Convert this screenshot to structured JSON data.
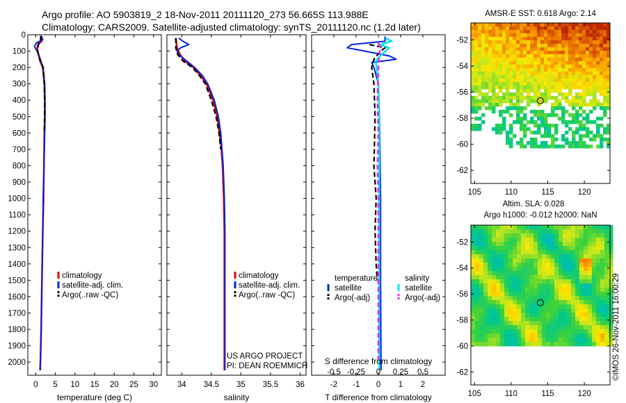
{
  "header": {
    "line1": "Argo profile: AO 5903819_2 18-Nov-2011 20111120_273 56.665S 113.988E",
    "line2": "Climatology: CARS2009. Satellite-adjusted climatology: synTS_20111120.nc (1.2d later)"
  },
  "colors": {
    "climatology": "#e00000",
    "satellite_clim": "#0022dd",
    "argo": "#000000",
    "satellite_diff": "#00e5e5",
    "argo_salinity_diff": "#ee22ee"
  },
  "chart_data": [
    {
      "type": "line",
      "name": "temperature-panel",
      "xlabel": "temperature (deg C)",
      "ylabel": "",
      "xlim": [
        -2,
        32
      ],
      "ylim": [
        2080,
        0
      ],
      "xticks": [
        0,
        5,
        10,
        15,
        20,
        25,
        30
      ],
      "yticks": [
        0,
        100,
        200,
        300,
        400,
        500,
        600,
        700,
        800,
        900,
        1000,
        1100,
        1200,
        1300,
        1400,
        1500,
        1600,
        1700,
        1800,
        1900,
        2000
      ],
      "legend": [
        "climatology",
        "satellite-adj. clim.",
        "Argo(..raw -QC)"
      ],
      "series": [
        {
          "name": "climatology",
          "depth": [
            10,
            40,
            60,
            80,
            100,
            130,
            160,
            200,
            300,
            400,
            500,
            600,
            800,
            1000,
            1200,
            1500,
            1800,
            2000,
            2050
          ],
          "values": [
            1.2,
            1.5,
            0.6,
            0.4,
            0.5,
            0.8,
            1.1,
            1.8,
            2.2,
            2.3,
            2.3,
            2.2,
            2.1,
            2.0,
            1.8,
            1.6,
            1.4,
            1.2,
            1.1
          ]
        },
        {
          "name": "satellite-adj. clim.",
          "depth": [
            10,
            30,
            50,
            70,
            90,
            110,
            130,
            160,
            200,
            300,
            400,
            500,
            600,
            800,
            1000,
            1200,
            1500,
            1800,
            2000,
            2050
          ],
          "values": [
            1.5,
            1.8,
            0.2,
            -0.3,
            0.1,
            0.6,
            0.9,
            1.3,
            1.9,
            2.3,
            2.4,
            2.4,
            2.3,
            2.1,
            1.9,
            1.8,
            1.6,
            1.4,
            1.2,
            1.2
          ]
        },
        {
          "name": "Argo(..raw -QC)",
          "depth": [
            5,
            20,
            40,
            60,
            80,
            100,
            120,
            150,
            180,
            200,
            300,
            400,
            500,
            600
          ],
          "values": [
            1.3,
            1.4,
            1.0,
            0.7,
            0.6,
            0.5,
            0.7,
            1.1,
            1.6,
            1.9,
            2.2,
            2.3,
            2.3,
            2.2
          ]
        }
      ]
    },
    {
      "type": "line",
      "name": "salinity-panel",
      "xlabel": "salinity",
      "ylabel": "",
      "xlim": [
        33.75,
        36.1
      ],
      "ylim": [
        2080,
        0
      ],
      "xticks": [
        34,
        34.5,
        35,
        35.5,
        36
      ],
      "legend": [
        "climatology",
        "satellite-adj. clim.",
        "Argo(..raw -QC)"
      ],
      "annotations": [
        "US ARGO PROJECT",
        "PI: DEAN ROEMMICH"
      ],
      "series": [
        {
          "name": "climatology",
          "depth": [
            20,
            80,
            120,
            160,
            200,
            250,
            300,
            400,
            500,
            600,
            700,
            800,
            1000,
            1200,
            1500,
            2000,
            2050
          ],
          "values": [
            33.9,
            33.92,
            33.97,
            34.05,
            34.2,
            34.32,
            34.42,
            34.53,
            34.6,
            34.64,
            34.67,
            34.69,
            34.71,
            34.72,
            34.72,
            34.72,
            34.72
          ]
        },
        {
          "name": "satellite-adj. clim.",
          "depth": [
            20,
            40,
            60,
            80,
            100,
            120,
            160,
            200,
            250,
            300,
            400,
            500,
            600,
            800,
            1000,
            1200,
            1500,
            2000,
            2050
          ],
          "values": [
            33.95,
            34.02,
            34.12,
            33.98,
            33.92,
            33.95,
            34.08,
            34.22,
            34.35,
            34.44,
            34.55,
            34.62,
            34.66,
            34.7,
            34.72,
            34.73,
            34.73,
            34.73,
            34.73
          ]
        },
        {
          "name": "Argo(..raw -QC)",
          "depth": [
            20,
            80,
            120,
            160,
            200,
            250,
            300,
            400,
            500,
            600,
            700
          ],
          "values": [
            33.9,
            33.9,
            33.93,
            34.02,
            34.18,
            34.3,
            34.4,
            34.5,
            34.58,
            34.63,
            34.66
          ]
        }
      ]
    },
    {
      "type": "line",
      "name": "difference-panel",
      "xlabel": "T difference from climatology",
      "xlabel2": "S difference from climatology",
      "xlim": [
        -3,
        3
      ],
      "ylim": [
        2080,
        0
      ],
      "xticks": [
        -2,
        -1,
        0,
        1,
        2
      ],
      "xticks_top": [
        -0.5,
        -0.25,
        0,
        0.25,
        0.5
      ],
      "legend_temperature": [
        "temperature",
        "satellite",
        "Argo(-adj)"
      ],
      "legend_salinity": [
        "salinity",
        "satellite",
        "Argo(-adj)"
      ],
      "series": [
        {
          "name": "temperature satellite",
          "depth": [
            10,
            40,
            60,
            80,
            100,
            130,
            150,
            170,
            200,
            300,
            500,
            800,
            1000,
            1500,
            2000,
            2050
          ],
          "values": [
            0.3,
            0.3,
            -1.2,
            -1.4,
            -0.6,
            0.5,
            0.8,
            -0.3,
            -0.2,
            0,
            0.05,
            0.08,
            0.1,
            0.1,
            0.12,
            0.12
          ]
        },
        {
          "name": "temperature Argo(-adj)",
          "depth": [
            60,
            80,
            100,
            150,
            200,
            300,
            500,
            800,
            1000,
            1200,
            1400,
            1500
          ],
          "values": [
            -0.4,
            0.3,
            0.1,
            -0.2,
            -0.3,
            -0.2,
            -0.15,
            -0.2,
            -0.1,
            -0.15,
            -0.1,
            -0.05
          ]
        },
        {
          "name": "salinity satellite",
          "depth": [
            20,
            40,
            60,
            80,
            100,
            130,
            160,
            200,
            300,
            500,
            800,
            1000,
            1500,
            2000,
            2050
          ],
          "values": [
            0.08,
            0.15,
            0.02,
            0.12,
            0.08,
            0.02,
            -0.03,
            -0.02,
            0,
            0.01,
            0.01,
            0.01,
            0.01,
            0.01,
            0.01
          ]
        },
        {
          "name": "salinity Argo(-adj)",
          "depth": [
            50,
            80,
            120,
            200,
            400,
            600,
            800,
            1000,
            1500,
            2000
          ],
          "values": [
            0.0,
            0.02,
            0.01,
            0.0,
            -0.01,
            0.0,
            -0.01,
            0,
            0,
            0
          ]
        }
      ]
    },
    {
      "type": "heatmap",
      "name": "sst-map",
      "title": "AMSR-E SST: 0.618 Argo: 2.14",
      "xlim": [
        104.5,
        123.5
      ],
      "ylim": [
        -63,
        -50.7
      ],
      "xticks": [
        105,
        110,
        115,
        120
      ],
      "yticks": [
        -52,
        -54,
        -56,
        -58,
        -60,
        -62
      ],
      "marker": {
        "lon": 113.988,
        "lat": -56.665
      }
    },
    {
      "type": "heatmap",
      "name": "sla-map",
      "title": "Altim. SLA: 0.028",
      "subtitle": "Argo h1000: -0.012 h2000: NaN",
      "xlim": [
        104.5,
        123.5
      ],
      "ylim": [
        -63,
        -50.7
      ],
      "xticks": [
        105,
        110,
        115,
        120
      ],
      "yticks": [
        -52,
        -54,
        -56,
        -58,
        -60,
        -62
      ],
      "marker": {
        "lon": 113.988,
        "lat": -56.665
      }
    }
  ],
  "stamp": "©IMOS 26-Nov-2011 16:00:29"
}
